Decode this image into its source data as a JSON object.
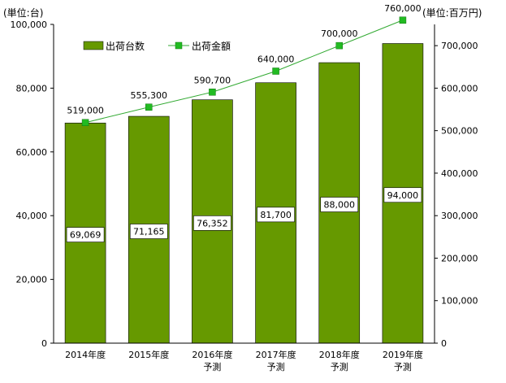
{
  "chart_data": {
    "type": "bar",
    "y_unit_left": "(単位:台)",
    "y_unit_right": "(単位:百万円)",
    "categories": [
      [
        "2014年度"
      ],
      [
        "2015年度"
      ],
      [
        "2016年度",
        "予測"
      ],
      [
        "2017年度",
        "予測"
      ],
      [
        "2018年度",
        "予測"
      ],
      [
        "2019年度",
        "予測"
      ]
    ],
    "series": [
      {
        "name": "出荷台数",
        "type": "bar",
        "axis": "left",
        "color": "#669900",
        "values": [
          69069,
          71165,
          76352,
          81700,
          88000,
          94000
        ],
        "labels": [
          "69,069",
          "71,165",
          "76,352",
          "81,700",
          "88,000",
          "94,000"
        ]
      },
      {
        "name": "出荷金額",
        "type": "line",
        "axis": "right",
        "color": "#33aa33",
        "marker_color": "#22bb22",
        "values": [
          519000,
          555300,
          590700,
          640000,
          700000,
          760000
        ],
        "labels": [
          "519,000",
          "555,300",
          "590,700",
          "640,000",
          "700,000",
          "760,000"
        ]
      }
    ],
    "y_left": {
      "min": 0,
      "max": 100000,
      "ticks": [
        0,
        20000,
        40000,
        60000,
        80000,
        100000
      ],
      "tick_labels": [
        "0",
        "20,000",
        "40,000",
        "60,000",
        "80,000",
        "100,000"
      ]
    },
    "y_right": {
      "min": 0,
      "max": 750000,
      "ticks": [
        0,
        100000,
        200000,
        300000,
        400000,
        500000,
        600000,
        700000
      ],
      "tick_labels": [
        "0",
        "100,000",
        "200,000",
        "300,000",
        "400,000",
        "500,000",
        "600,000",
        "700,000"
      ]
    },
    "legend_position": "top-left",
    "grid": false
  }
}
